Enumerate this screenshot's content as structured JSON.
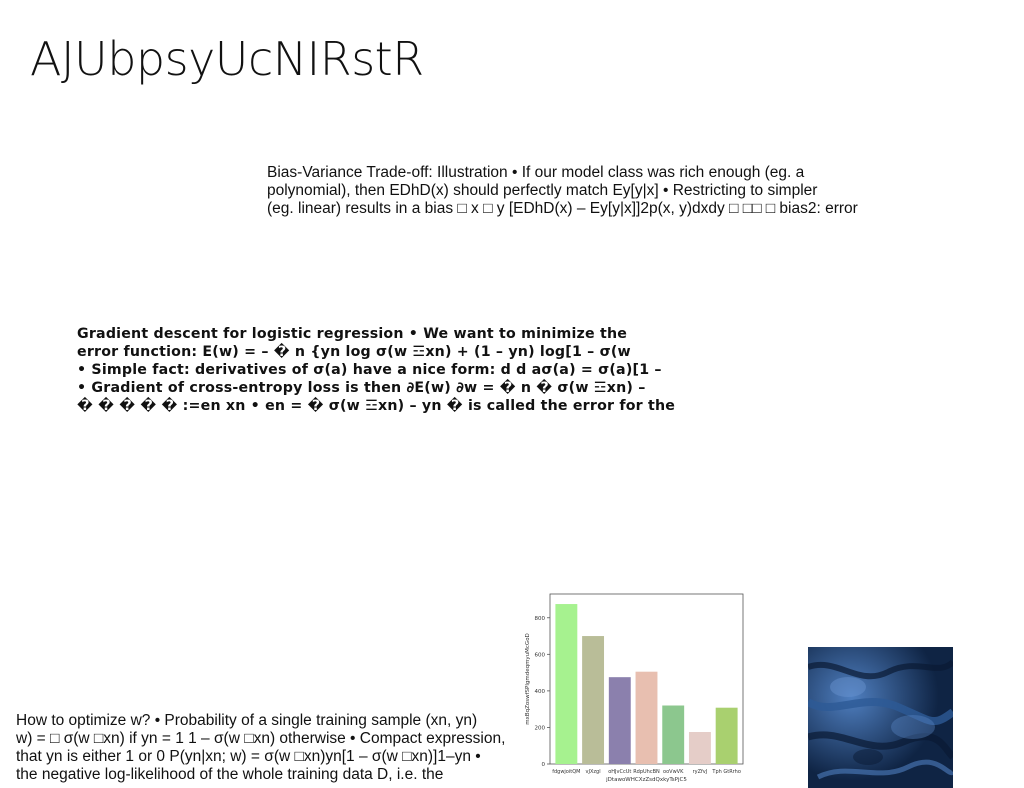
{
  "page": {
    "title": "AJUbpsyUcNIRstR"
  },
  "bias_paragraph": [
    "Bias-Variance Trade-off: Illustration • If our model class was rich enough (eg. a",
    "polynomial), then EDhD(x) should perfectly match Ey[y|x] • Restricting to simpler",
    "(eg. linear) results in a bias □ x □ y [EDhD(x) – Ey[y|x]]2p(x, y)dxdy □ □□ □ bias2: error"
  ],
  "gradient_paragraph": [
    "Gradient descent for logistic regression • We want to minimize the",
    "error function: E(w) = – � n {yn log σ(w ☲xn) + (1 – yn) log[1 – σ(w",
    "• Simple fact: derivatives of σ(a) have a nice form: d d aσ(a) = σ(a)[1 –",
    "• Gradient of cross-entropy loss is then ∂E(w) ∂w = � n � σ(w ☲xn) –",
    "� � � � � :=en xn • en = � σ(w ☲xn) – yn � is called the error for the"
  ],
  "optimize_paragraph": [
    "How to optimize w? • Probability of a single training sample (xn, yn)",
    "w) = □ σ(w □xn) if yn = 1 1 – σ(w □xn) otherwise • Compact expression,",
    "that yn is either 1 or 0 P(yn|xn; w) = σ(w □xn)yn[1 – σ(w □xn)]1–yn •",
    "the negative log-likelihood of the whole training data D, i.e. the"
  ],
  "chart_data": {
    "type": "bar",
    "categories": [
      "fdgwjoitQM",
      "vJXzgl",
      "oHJvCcUt",
      "RdpUhcBN",
      "ooVwVK",
      "ryZfvJ",
      "Tph GtRrho"
    ],
    "values": [
      875,
      700,
      475,
      505,
      320,
      175,
      308
    ],
    "colors": [
      "#a6f28f",
      "#b9bd98",
      "#8b80ad",
      "#e8bfb0",
      "#8cc78e",
      "#e5cdc8",
      "#a9d06f"
    ],
    "xlabel": "jDtawoWHCXzZsdQxkyTsPjC5",
    "ylabel": "mxBqZoswfSPlgmdeqmyuMcGoD",
    "yticks": [
      0,
      200,
      400,
      600,
      800
    ],
    "ylim": [
      0,
      930
    ],
    "grid": false
  },
  "texture_image": {
    "colors": [
      "#0f2444",
      "#2d5a96",
      "#4f7fc0",
      "#0a1a33"
    ]
  }
}
